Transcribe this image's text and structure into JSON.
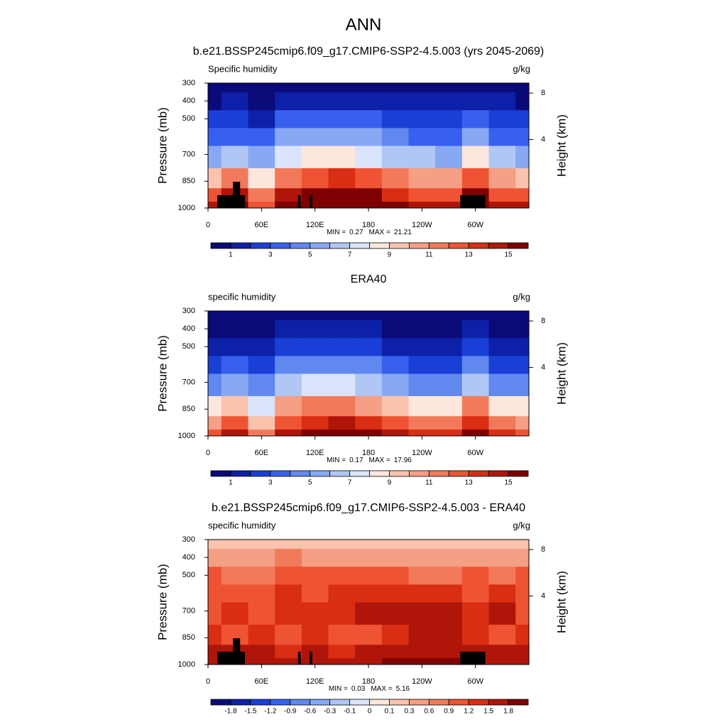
{
  "title": "ANN",
  "chart_data": [
    {
      "type": "contour",
      "title": "b.e21.BSSP245cmip6.f09_g17.CMIP6-SSP2-4.5.003 (yrs 2045-2069)",
      "field_label": "Specific humidity",
      "units": "g/kg",
      "ylabel": "Pressure (mb)",
      "y2label": "Height (km)",
      "x": [
        0,
        30,
        60,
        90,
        120,
        150,
        180,
        210,
        240,
        270,
        300,
        330,
        360
      ],
      "y": [
        1000,
        925,
        850,
        700,
        600,
        500,
        400,
        300
      ],
      "values": [
        [
          14,
          16,
          12,
          16,
          17,
          17.5,
          17,
          15.5,
          14.5,
          14.5,
          17,
          14.5,
          14
        ],
        [
          12,
          14,
          11,
          14,
          15,
          15.5,
          15,
          13.5,
          12.5,
          12.5,
          15,
          12.5,
          12
        ],
        [
          9.5,
          11,
          8.5,
          11.5,
          12.5,
          13,
          12,
          11,
          10,
          10,
          12.5,
          10,
          9.5
        ],
        [
          5.5,
          6.5,
          5,
          7.5,
          8.3,
          8.6,
          7.8,
          6.8,
          6,
          5.8,
          8.2,
          6,
          5.5
        ],
        [
          3.5,
          3.8,
          3,
          5,
          5.6,
          5.8,
          5.2,
          4.4,
          3.8,
          3.6,
          5.4,
          3.8,
          3.5
        ],
        [
          2,
          2.2,
          1.6,
          3,
          3.5,
          3.6,
          3.2,
          2.7,
          2.2,
          2.2,
          3.3,
          2.3,
          2
        ],
        [
          0.9,
          1.1,
          0.8,
          1.4,
          1.7,
          1.8,
          1.6,
          1.3,
          1,
          1,
          1.6,
          1.1,
          0.9
        ],
        [
          0.4,
          0.5,
          0.4,
          0.6,
          0.7,
          0.7,
          0.6,
          0.5,
          0.4,
          0.4,
          0.7,
          0.5,
          0.4
        ]
      ],
      "xlim": [
        0,
        360
      ],
      "xticks": [
        0,
        {
          "value": 60,
          "label": "60E"
        },
        {
          "value": 120,
          "label": "120E"
        },
        180,
        {
          "value": 240,
          "label": "120W"
        },
        {
          "value": 300,
          "label": "60W"
        }
      ],
      "ylim": [
        1000,
        300
      ],
      "yticks": [
        300,
        400,
        500,
        700,
        850,
        1000
      ],
      "y2ticks": [
        4,
        8
      ],
      "min_label": "MIN =",
      "min": 0.27,
      "max_label": "MAX =",
      "max": 21.21,
      "levels": [
        1,
        2,
        3,
        4,
        5,
        6,
        7,
        8,
        9,
        10,
        11,
        12,
        13,
        14,
        15
      ],
      "colorbar_ticks": [
        1,
        3,
        5,
        7,
        9,
        11,
        13,
        15
      ],
      "colors": [
        "#0a0a78",
        "#0d20a8",
        "#1a3fd6",
        "#3860ee",
        "#6088ef",
        "#87a8f2",
        "#b0c7f5",
        "#dae4fa",
        "#fde7dc",
        "#f9c3ad",
        "#f59f84",
        "#f27a5a",
        "#ee5433",
        "#d92e13",
        "#b0150a",
        "#7f0000"
      ],
      "terrain": [
        {
          "x0": 10.4,
          "x1": 41.4,
          "p": 928
        },
        {
          "x0": 28,
          "x1": 36,
          "p": 853
        },
        {
          "x0": 101,
          "x1": 104,
          "p": 928
        },
        {
          "x0": 114,
          "x1": 117,
          "p": 928
        },
        {
          "x0": 283,
          "x1": 311,
          "p": 928
        }
      ]
    },
    {
      "type": "contour",
      "title": "ERA40",
      "field_label": "specific humidity",
      "units": "g/kg",
      "ylabel": "Pressure (mb)",
      "y2label": "Height (km)",
      "x": [
        0,
        30,
        60,
        90,
        120,
        150,
        180,
        210,
        240,
        270,
        300,
        330,
        360
      ],
      "y": [
        1000,
        925,
        850,
        700,
        600,
        500,
        400,
        300
      ],
      "values": [
        [
          12.5,
          14,
          11,
          14.5,
          15.5,
          16,
          15.5,
          14,
          13,
          13,
          15,
          13,
          12.5
        ],
        [
          10.5,
          12,
          9.5,
          12.5,
          13.5,
          14,
          13.5,
          12,
          11,
          11,
          13,
          11,
          10.5
        ],
        [
          8.3,
          9.5,
          7.5,
          10,
          11,
          11.5,
          10.8,
          9.6,
          8.6,
          8.5,
          11,
          8.6,
          8.3
        ],
        [
          4.5,
          5.2,
          4,
          6.3,
          7,
          7.2,
          6.4,
          5.3,
          4.6,
          4.4,
          6.9,
          4.7,
          4.5
        ],
        [
          2.8,
          3,
          2.4,
          4,
          4.5,
          4.6,
          4,
          3.3,
          2.8,
          2.7,
          4.3,
          2.9,
          2.8
        ],
        [
          1.4,
          1.6,
          1.1,
          2.2,
          2.6,
          2.7,
          2.3,
          1.9,
          1.5,
          1.5,
          2.4,
          1.6,
          1.4
        ],
        [
          0.6,
          0.8,
          0.5,
          1,
          1.2,
          1.3,
          1.1,
          0.9,
          0.7,
          0.7,
          1.1,
          0.7,
          0.6
        ],
        [
          0.3,
          0.3,
          0.25,
          0.4,
          0.5,
          0.5,
          0.4,
          0.35,
          0.3,
          0.3,
          0.45,
          0.3,
          0.3
        ]
      ],
      "xlim": [
        0,
        360
      ],
      "xticks": [
        0,
        {
          "value": 60,
          "label": "60E"
        },
        {
          "value": 120,
          "label": "120E"
        },
        180,
        {
          "value": 240,
          "label": "120W"
        },
        {
          "value": 300,
          "label": "60W"
        }
      ],
      "ylim": [
        1000,
        300
      ],
      "yticks": [
        300,
        400,
        500,
        700,
        850,
        1000
      ],
      "y2ticks": [
        4,
        8
      ],
      "min_label": "MIN =",
      "min": 0.17,
      "max_label": "MAX =",
      "max": 17.96,
      "levels": [
        1,
        2,
        3,
        4,
        5,
        6,
        7,
        8,
        9,
        10,
        11,
        12,
        13,
        14,
        15
      ],
      "colorbar_ticks": [
        1,
        3,
        5,
        7,
        9,
        11,
        13,
        15
      ],
      "colors": [
        "#0a0a78",
        "#0d20a8",
        "#1a3fd6",
        "#3860ee",
        "#6088ef",
        "#87a8f2",
        "#b0c7f5",
        "#dae4fa",
        "#fde7dc",
        "#f9c3ad",
        "#f59f84",
        "#f27a5a",
        "#ee5433",
        "#d92e13",
        "#b0150a",
        "#7f0000"
      ]
    },
    {
      "type": "contour",
      "title": "b.e21.BSSP245cmip6.f09_g17.CMIP6-SSP2-4.5.003 - ERA40",
      "field_label": "specific humidity",
      "units": "g/kg",
      "ylabel": "Pressure (mb)",
      "y2label": "Height (km)",
      "x": [
        0,
        30,
        60,
        90,
        120,
        150,
        180,
        210,
        240,
        270,
        300,
        330,
        360
      ],
      "y": [
        1000,
        925,
        850,
        700,
        600,
        500,
        400,
        300
      ],
      "values": [
        [
          1.7,
          1.7,
          1.7,
          1.6,
          1.7,
          1.6,
          1.7,
          1.8,
          1.9,
          1.9,
          1.7,
          1.7,
          1.7
        ],
        [
          1.6,
          1.5,
          1.6,
          1.4,
          1.5,
          1.4,
          1.5,
          1.6,
          1.7,
          1.7,
          1.6,
          1.5,
          1.6
        ],
        [
          1.3,
          1,
          1.4,
          0.9,
          1.3,
          1,
          1.1,
          1.4,
          1.6,
          1.6,
          1.4,
          1,
          1.3
        ],
        [
          1.1,
          1.3,
          1.1,
          1.3,
          1.2,
          1.4,
          1.5,
          1.6,
          1.6,
          1.6,
          1.3,
          1.5,
          1.1
        ],
        [
          1.1,
          1,
          1,
          1.2,
          1.1,
          1.2,
          1.3,
          1.3,
          1.3,
          1.2,
          1.1,
          1.2,
          1.1
        ],
        [
          0.9,
          0.8,
          0.7,
          1,
          0.9,
          0.9,
          0.95,
          0.9,
          0.85,
          0.8,
          0.9,
          0.8,
          0.9
        ],
        [
          0.5,
          0.5,
          0.4,
          0.6,
          0.5,
          0.5,
          0.5,
          0.45,
          0.45,
          0.4,
          0.5,
          0.5,
          0.5
        ],
        [
          0.2,
          0.2,
          0.15,
          0.25,
          0.2,
          0.2,
          0.2,
          0.15,
          0.15,
          0.15,
          0.2,
          0.2,
          0.2
        ]
      ],
      "xlim": [
        0,
        360
      ],
      "xticks": [
        0,
        {
          "value": 60,
          "label": "60E"
        },
        {
          "value": 120,
          "label": "120E"
        },
        180,
        {
          "value": 240,
          "label": "120W"
        },
        {
          "value": 300,
          "label": "60W"
        }
      ],
      "ylim": [
        1000,
        300
      ],
      "yticks": [
        300,
        400,
        500,
        700,
        850,
        1000
      ],
      "y2ticks": [
        4,
        8
      ],
      "min_label": "MIN =",
      "min": 0.03,
      "max_label": "MAX =",
      "max": 5.16,
      "levels": [
        -1.8,
        -1.5,
        -1.2,
        -0.9,
        -0.6,
        -0.3,
        -0.1,
        0,
        0.1,
        0.3,
        0.6,
        0.9,
        1.2,
        1.5,
        1.8
      ],
      "colorbar_ticks": [
        -1.8,
        -1.5,
        -1.2,
        -0.9,
        -0.6,
        -0.3,
        -0.1,
        0,
        0.1,
        0.3,
        0.6,
        0.9,
        1.2,
        1.5,
        1.8
      ],
      "colors": [
        "#0a0a78",
        "#0d20a8",
        "#1a3fd6",
        "#3860ee",
        "#6088ef",
        "#87a8f2",
        "#b0c7f5",
        "#dae4fa",
        "#fde7dc",
        "#f9c3ad",
        "#f59f84",
        "#f27a5a",
        "#ee5433",
        "#d92e13",
        "#b0150a",
        "#7f0000"
      ],
      "terrain": [
        {
          "x0": 10.4,
          "x1": 41.4,
          "p": 928
        },
        {
          "x0": 28,
          "x1": 36,
          "p": 853
        },
        {
          "x0": 101,
          "x1": 104,
          "p": 928
        },
        {
          "x0": 114,
          "x1": 117,
          "p": 928
        },
        {
          "x0": 283,
          "x1": 311,
          "p": 928
        }
      ]
    }
  ]
}
